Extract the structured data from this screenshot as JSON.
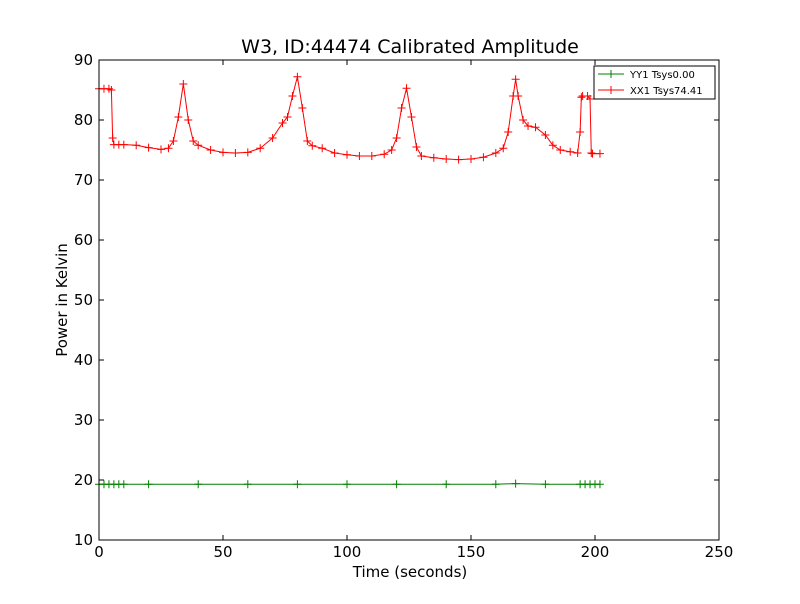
{
  "chart_data": {
    "type": "line",
    "title": "W3, ID:44474 Calibrated Amplitude",
    "xlabel": "Time (seconds)",
    "ylabel": "Power in Kelvin",
    "xlim": [
      0,
      250
    ],
    "ylim": [
      10,
      90
    ],
    "xticks": [
      0,
      50,
      100,
      150,
      200,
      250
    ],
    "yticks": [
      10,
      20,
      30,
      40,
      50,
      60,
      70,
      80,
      90
    ],
    "xtick_labels": [
      "0",
      "50",
      "100",
      "150",
      "200",
      "250"
    ],
    "ytick_labels": [
      "10",
      "20",
      "30",
      "40",
      "50",
      "60",
      "70",
      "80",
      "90"
    ],
    "grid": false,
    "legend_position": "top-right",
    "marker": "+",
    "series": [
      {
        "name": "YY1 Tsys0.00",
        "color": "#008000",
        "x": [
          0,
          2,
          4,
          6,
          8,
          10,
          20,
          40,
          60,
          80,
          100,
          120,
          140,
          160,
          168,
          180,
          194,
          196,
          198,
          200,
          202
        ],
        "y": [
          19.3,
          19.3,
          19.3,
          19.3,
          19.3,
          19.3,
          19.3,
          19.3,
          19.3,
          19.3,
          19.3,
          19.3,
          19.3,
          19.3,
          19.4,
          19.3,
          19.3,
          19.3,
          19.3,
          19.3,
          19.3
        ]
      },
      {
        "name": "XX1 Tsys74.41",
        "color": "#ff0000",
        "x": [
          0,
          2,
          4,
          5,
          5.5,
          6,
          8,
          10,
          15,
          20,
          25,
          28,
          30,
          32,
          34,
          36,
          38,
          40,
          45,
          50,
          55,
          60,
          65,
          70,
          74,
          76,
          78,
          80,
          82,
          84,
          86,
          90,
          95,
          100,
          105,
          110,
          115,
          118,
          120,
          122,
          124,
          126,
          128,
          130,
          135,
          140,
          145,
          150,
          155,
          160,
          163,
          165,
          167,
          168,
          169,
          171,
          173,
          176,
          180,
          183,
          186,
          190,
          193,
          194,
          194.5,
          195,
          197,
          198,
          198.5,
          199,
          202
        ],
        "y": [
          85.2,
          85.2,
          85.2,
          85.0,
          77.0,
          75.9,
          75.9,
          75.9,
          75.8,
          75.4,
          75.1,
          75.3,
          76.5,
          80.5,
          86.0,
          80.0,
          76.5,
          75.8,
          75.0,
          74.6,
          74.5,
          74.6,
          75.3,
          77.0,
          79.5,
          80.5,
          84.0,
          87.2,
          82.0,
          76.5,
          75.7,
          75.3,
          74.5,
          74.2,
          74.0,
          74.0,
          74.3,
          75.0,
          77.0,
          82.0,
          85.3,
          80.5,
          75.5,
          74.0,
          73.7,
          73.5,
          73.4,
          73.5,
          73.8,
          74.5,
          75.3,
          78.0,
          84.0,
          86.8,
          84.0,
          80.0,
          79.0,
          78.8,
          77.5,
          75.8,
          75.0,
          74.7,
          74.5,
          78.0,
          83.8,
          84.0,
          84.0,
          83.5,
          74.5,
          74.4,
          74.4
        ]
      }
    ]
  }
}
